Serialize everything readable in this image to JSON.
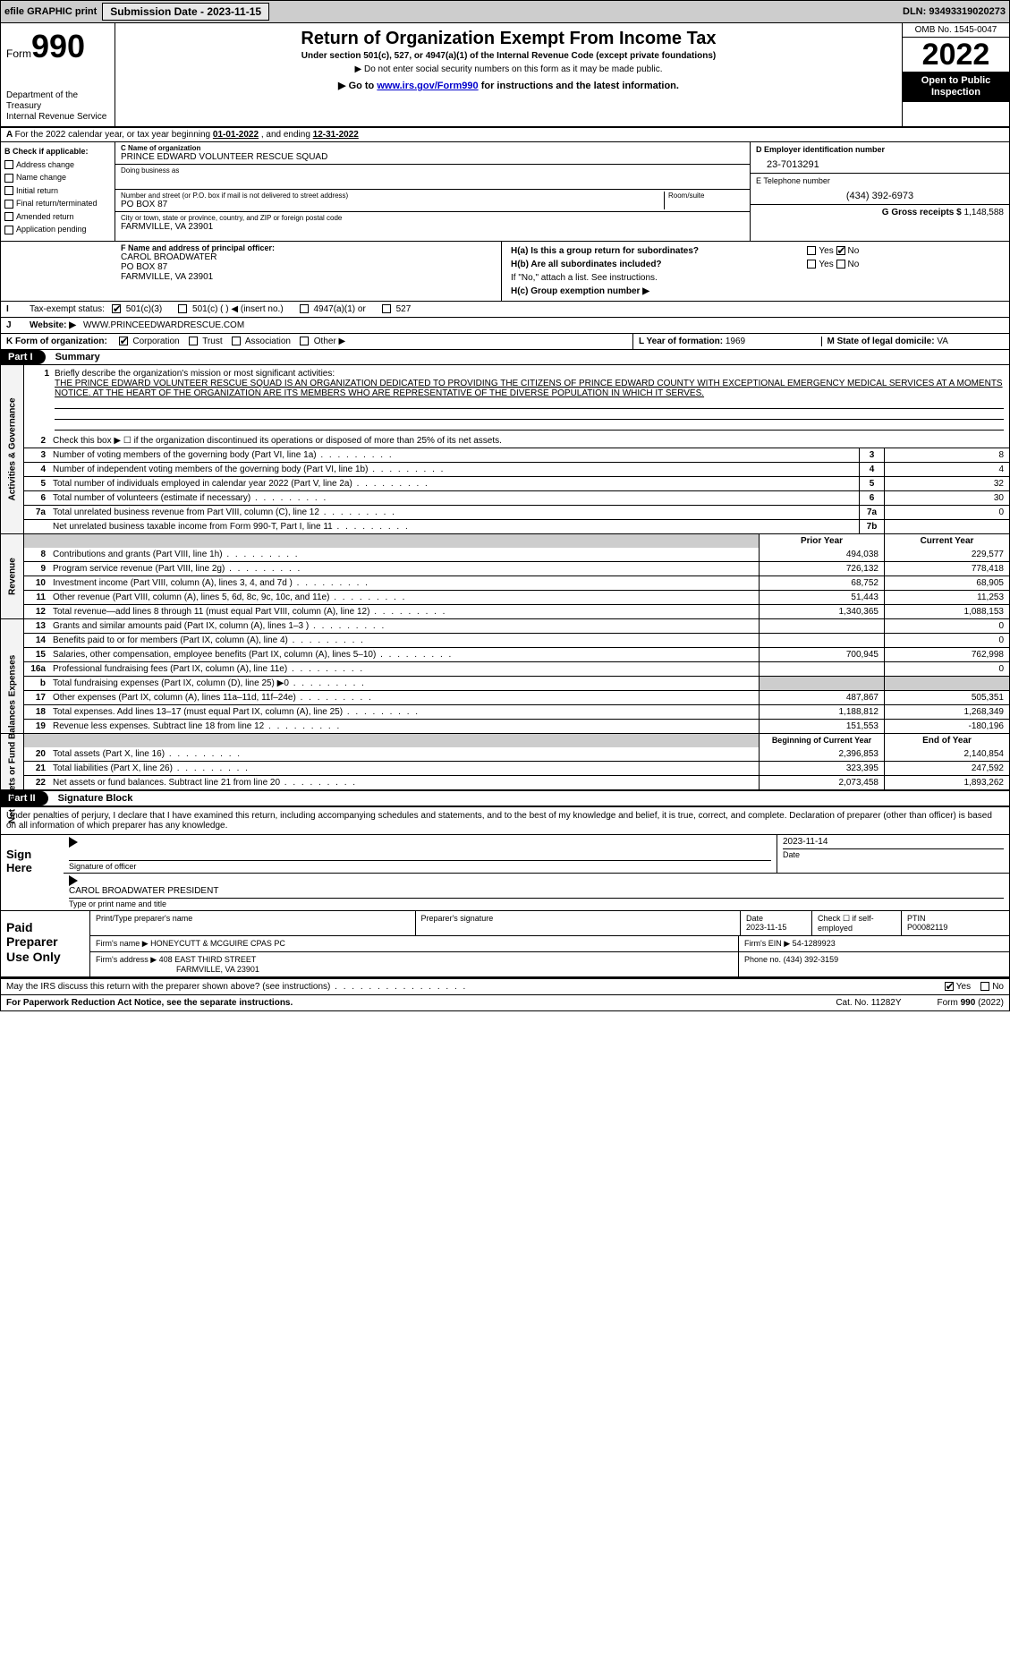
{
  "topbar": {
    "efile": "efile GRAPHIC print",
    "submission_btn": "Submission Date - 2023-11-15",
    "dln": "DLN: 93493319020273"
  },
  "header": {
    "form_word": "Form",
    "form_num": "990",
    "dept": "Department of the Treasury\nInternal Revenue Service",
    "title": "Return of Organization Exempt From Income Tax",
    "sub1": "Under section 501(c), 527, or 4947(a)(1) of the Internal Revenue Code (except private foundations)",
    "sub2": "▶ Do not enter social security numbers on this form as it may be made public.",
    "sub3_pre": "▶ Go to ",
    "sub3_link": "www.irs.gov/Form990",
    "sub3_post": " for instructions and the latest information.",
    "omb": "OMB No. 1545-0047",
    "year": "2022",
    "openpub": "Open to Public Inspection"
  },
  "period": {
    "text_a": "For the 2022 calendar year, or tax year beginning ",
    "begin": "01-01-2022",
    "text_b": "   , and ending ",
    "end": "12-31-2022"
  },
  "boxB": {
    "label": "B Check if applicable:",
    "items": [
      "Address change",
      "Name change",
      "Initial return",
      "Final return/terminated",
      "Amended return",
      "Application pending"
    ]
  },
  "boxC": {
    "name_lbl": "C Name of organization",
    "name": "PRINCE EDWARD VOLUNTEER RESCUE SQUAD",
    "dba_lbl": "Doing business as",
    "dba": "",
    "street_lbl": "Number and street (or P.O. box if mail is not delivered to street address)",
    "room_lbl": "Room/suite",
    "street": "PO BOX 87",
    "city_lbl": "City or town, state or province, country, and ZIP or foreign postal code",
    "city": "FARMVILLE, VA  23901"
  },
  "boxD": {
    "lbl": "D Employer identification number",
    "val": "23-7013291"
  },
  "boxE": {
    "lbl": "E Telephone number",
    "val": "(434) 392-6973"
  },
  "boxG": {
    "lbl": "G Gross receipts $",
    "val": "1,148,588"
  },
  "boxF": {
    "lbl": "F  Name and address of principal officer:",
    "name": "CAROL BROADWATER",
    "addr1": "PO BOX 87",
    "addr2": "FARMVILLE, VA  23901"
  },
  "boxH": {
    "ha": "H(a)  Is this a group return for subordinates?",
    "hb": "H(b)  Are all subordinates included?",
    "hb2": "If \"No,\" attach a list. See instructions.",
    "hc": "H(c)  Group exemption number ▶",
    "yes": "Yes",
    "no": "No"
  },
  "boxI": {
    "lbl": "Tax-exempt status:",
    "opts": [
      "501(c)(3)",
      "501(c) (    ) ◀ (insert no.)",
      "4947(a)(1) or",
      "527"
    ]
  },
  "boxJ": {
    "lbl": "Website: ▶",
    "val": "WWW.PRINCEEDWARDRESCUE.COM"
  },
  "boxK": {
    "lbl": "K Form of organization:",
    "opts": [
      "Corporation",
      "Trust",
      "Association",
      "Other ▶"
    ]
  },
  "boxL": {
    "lbl": "L Year of formation:",
    "val": "1969"
  },
  "boxM": {
    "lbl": "M State of legal domicile:",
    "val": "VA"
  },
  "part1": {
    "hdr": "Part I",
    "title": "Summary"
  },
  "mission": {
    "num": "1",
    "lbl": "Briefly describe the organization's mission or most significant activities:",
    "text": "THE PRINCE EDWARD VOLUNTEER RESCUE SQUAD IS AN ORGANIZATION DEDICATED TO PROVIDING THE CITIZENS OF PRINCE EDWARD COUNTY WITH EXCEPTIONAL EMERGENCY MEDICAL SERVICES AT A MOMENTS NOTICE. AT THE HEART OF THE ORGANIZATION ARE ITS MEMBERS WHO ARE REPRESENTATIVE OF THE DIVERSE POPULATION IN WHICH IT SERVES."
  },
  "gov_lines": [
    {
      "n": "2",
      "d": "Check this box ▶ ☐  if the organization discontinued its operations or disposed of more than 25% of its net assets.",
      "box": "",
      "v": ""
    },
    {
      "n": "3",
      "d": "Number of voting members of the governing body (Part VI, line 1a)",
      "box": "3",
      "v": "8"
    },
    {
      "n": "4",
      "d": "Number of independent voting members of the governing body (Part VI, line 1b)",
      "box": "4",
      "v": "4"
    },
    {
      "n": "5",
      "d": "Total number of individuals employed in calendar year 2022 (Part V, line 2a)",
      "box": "5",
      "v": "32"
    },
    {
      "n": "6",
      "d": "Total number of volunteers (estimate if necessary)",
      "box": "6",
      "v": "30"
    },
    {
      "n": "7a",
      "d": "Total unrelated business revenue from Part VIII, column (C), line 12",
      "box": "7a",
      "v": "0"
    },
    {
      "n": "",
      "d": "Net unrelated business taxable income from Form 990-T, Part I, line 11",
      "box": "7b",
      "v": ""
    }
  ],
  "rev_hdr": {
    "py": "Prior Year",
    "cy": "Current Year"
  },
  "rev_lines": [
    {
      "n": "8",
      "d": "Contributions and grants (Part VIII, line 1h)",
      "py": "494,038",
      "cy": "229,577"
    },
    {
      "n": "9",
      "d": "Program service revenue (Part VIII, line 2g)",
      "py": "726,132",
      "cy": "778,418"
    },
    {
      "n": "10",
      "d": "Investment income (Part VIII, column (A), lines 3, 4, and 7d )",
      "py": "68,752",
      "cy": "68,905"
    },
    {
      "n": "11",
      "d": "Other revenue (Part VIII, column (A), lines 5, 6d, 8c, 9c, 10c, and 11e)",
      "py": "51,443",
      "cy": "11,253"
    },
    {
      "n": "12",
      "d": "Total revenue—add lines 8 through 11 (must equal Part VIII, column (A), line 12)",
      "py": "1,340,365",
      "cy": "1,088,153"
    }
  ],
  "exp_lines": [
    {
      "n": "13",
      "d": "Grants and similar amounts paid (Part IX, column (A), lines 1–3 )",
      "py": "",
      "cy": "0"
    },
    {
      "n": "14",
      "d": "Benefits paid to or for members (Part IX, column (A), line 4)",
      "py": "",
      "cy": "0"
    },
    {
      "n": "15",
      "d": "Salaries, other compensation, employee benefits (Part IX, column (A), lines 5–10)",
      "py": "700,945",
      "cy": "762,998"
    },
    {
      "n": "16a",
      "d": "Professional fundraising fees (Part IX, column (A), line 11e)",
      "py": "",
      "cy": "0"
    },
    {
      "n": "b",
      "d": "Total fundraising expenses (Part IX, column (D), line 25) ▶0",
      "py": "SHADE",
      "cy": "SHADE"
    },
    {
      "n": "17",
      "d": "Other expenses (Part IX, column (A), lines 11a–11d, 11f–24e)",
      "py": "487,867",
      "cy": "505,351"
    },
    {
      "n": "18",
      "d": "Total expenses. Add lines 13–17 (must equal Part IX, column (A), line 25)",
      "py": "1,188,812",
      "cy": "1,268,349"
    },
    {
      "n": "19",
      "d": "Revenue less expenses. Subtract line 18 from line 12",
      "py": "151,553",
      "cy": "-180,196"
    }
  ],
  "na_hdr": {
    "py": "Beginning of Current Year",
    "cy": "End of Year"
  },
  "na_lines": [
    {
      "n": "20",
      "d": "Total assets (Part X, line 16)",
      "py": "2,396,853",
      "cy": "2,140,854"
    },
    {
      "n": "21",
      "d": "Total liabilities (Part X, line 26)",
      "py": "323,395",
      "cy": "247,592"
    },
    {
      "n": "22",
      "d": "Net assets or fund balances. Subtract line 21 from line 20",
      "py": "2,073,458",
      "cy": "1,893,262"
    }
  ],
  "sidetabs": {
    "gov": "Activities & Governance",
    "rev": "Revenue",
    "exp": "Expenses",
    "na": "Net Assets or Fund Balances"
  },
  "part2": {
    "hdr": "Part II",
    "title": "Signature Block"
  },
  "sig_desc": "Under penalties of perjury, I declare that I have examined this return, including accompanying schedules and statements, and to the best of my knowledge and belief, it is true, correct, and complete. Declaration of preparer (other than officer) is based on all information of which preparer has any knowledge.",
  "sign": {
    "here": "Sign Here",
    "sig_lbl": "Signature of officer",
    "date_lbl": "Date",
    "date": "2023-11-14",
    "name": "CAROL BROADWATER  PRESIDENT",
    "name_lbl": "Type or print name and title"
  },
  "prep": {
    "left": "Paid Preparer Use Only",
    "r1": {
      "a": "Print/Type preparer's name",
      "b": "Preparer's signature",
      "c": "Date",
      "cval": "2023-11-15",
      "d": "Check ☐ if self-employed",
      "e": "PTIN",
      "eval": "P00082119"
    },
    "r2": {
      "a": "Firm's name      ▶",
      "aval": "HONEYCUTT & MCGUIRE CPAS PC",
      "b": "Firm's EIN ▶",
      "bval": "54-1289923"
    },
    "r3": {
      "a": "Firm's address ▶",
      "aval": "408 EAST THIRD STREET",
      "aval2": "FARMVILLE, VA  23901",
      "b": "Phone no.",
      "bval": "(434) 392-3159"
    }
  },
  "discuss": {
    "q": "May the IRS discuss this return with the preparer shown above? (see instructions)",
    "yes": "Yes",
    "no": "No"
  },
  "footer": {
    "left": "For Paperwork Reduction Act Notice, see the separate instructions.",
    "mid": "Cat. No. 11282Y",
    "right_a": "Form ",
    "right_b": "990",
    "right_c": " (2022)"
  }
}
